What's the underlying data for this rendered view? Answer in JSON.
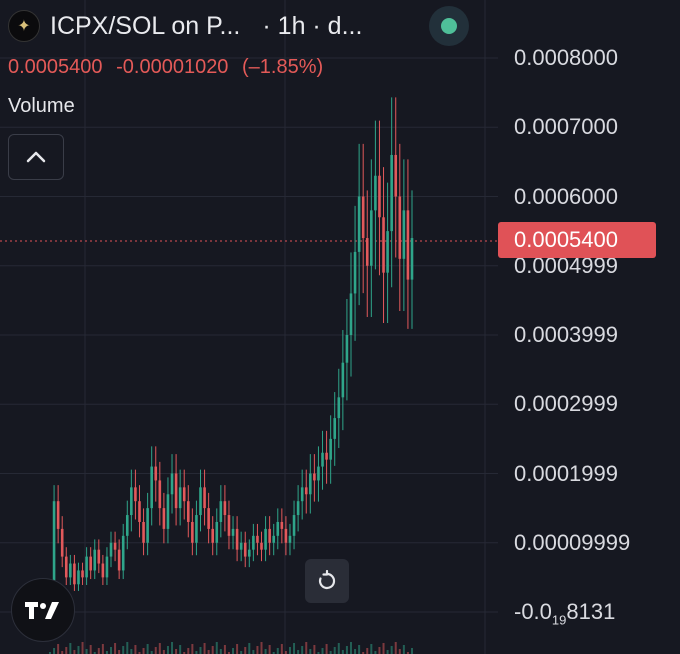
{
  "header": {
    "title": "ICPX/SOL on P...",
    "interval": "· 1h · d..."
  },
  "quote": {
    "last": "0.0005400",
    "change": "-0.00001020",
    "change_pct": "(–1.85%)"
  },
  "volume_label": "Volume",
  "price_axis": {
    "labels": [
      {
        "text": "0.0008000",
        "value": 0.0008
      },
      {
        "text": "0.0007000",
        "value": 0.0007
      },
      {
        "text": "0.0006000",
        "value": 0.0006
      },
      {
        "text": "0.0004999",
        "value": 0.0005
      },
      {
        "text": "0.0003999",
        "value": 0.0004
      },
      {
        "text": "0.0002999",
        "value": 0.0003
      },
      {
        "text": "0.0001999",
        "value": 0.0002
      },
      {
        "text": "0.00009999",
        "value": 0.0001
      },
      {
        "text": "-0.0",
        "sub": "19",
        "tail": "8131",
        "value": 0.0
      }
    ],
    "current_price_tag": "0.0005400",
    "current_price": 0.00054
  },
  "colors": {
    "up": "#2fa58a",
    "down": "#e2595b",
    "background": "#161821",
    "status_indicator": "#4fbf99"
  },
  "icons": {
    "pair_logo": "pair-token-icon",
    "collapse": "chevron-up-icon",
    "reset": "rotate-reset-icon",
    "brand": "tradingview-logo"
  },
  "chart_data": {
    "type": "candlestick",
    "ylim": [
      0.0,
      0.0008
    ],
    "grid": true,
    "current_price": 0.00054,
    "x": [
      "t01",
      "t02",
      "t03",
      "t04",
      "t05",
      "t06",
      "t07",
      "t08",
      "t09",
      "t10",
      "t11",
      "t12",
      "t13",
      "t14",
      "t15",
      "t16",
      "t17",
      "t18",
      "t19",
      "t20",
      "t21",
      "t22",
      "t23",
      "t24",
      "t25",
      "t26",
      "t27",
      "t28",
      "t29",
      "t30",
      "t31",
      "t32",
      "t33",
      "t34",
      "t35",
      "t36",
      "t37",
      "t38",
      "t39",
      "t40",
      "t41",
      "t42",
      "t43",
      "t44",
      "t45",
      "t46",
      "t47",
      "t48",
      "t49",
      "t50",
      "t51",
      "t52",
      "t53",
      "t54",
      "t55",
      "t56",
      "t57",
      "t58",
      "t59",
      "t60",
      "t61",
      "t62",
      "t63",
      "t64",
      "t65",
      "t66",
      "t67",
      "t68",
      "t69",
      "t70",
      "t71",
      "t72",
      "t73",
      "t74",
      "t75",
      "t76",
      "t77",
      "t78",
      "t79",
      "t80",
      "t81",
      "t82",
      "t83",
      "t84",
      "t85",
      "t86",
      "t87",
      "t88",
      "t89",
      "t90"
    ],
    "close": [
      2e-05,
      0.00016,
      0.00012,
      8e-05,
      5e-05,
      7e-05,
      4e-05,
      6e-05,
      5e-05,
      8e-05,
      6e-05,
      9e-05,
      7e-05,
      5e-05,
      8e-05,
      0.0001,
      9e-05,
      6e-05,
      0.00011,
      0.00014,
      0.00018,
      0.00016,
      0.00013,
      0.0001,
      0.00015,
      0.00021,
      0.00019,
      0.00015,
      0.00012,
      0.00017,
      0.0002,
      0.00015,
      0.00018,
      0.00016,
      0.00013,
      0.0001,
      0.00014,
      0.00018,
      0.00015,
      0.00012,
      0.0001,
      0.00013,
      0.00016,
      0.00014,
      0.00011,
      0.00012,
      9e-05,
      0.0001,
      8e-05,
      9e-05,
      0.00011,
      0.0001,
      9e-05,
      0.00012,
      0.0001,
      0.00011,
      0.00013,
      0.00012,
      0.0001,
      0.00011,
      0.00014,
      0.00016,
      0.00018,
      0.00017,
      0.0002,
      0.00019,
      0.00021,
      0.00023,
      0.00022,
      0.00025,
      0.00028,
      0.00031,
      0.00036,
      0.0004,
      0.00046,
      0.00052,
      0.0006,
      0.00054,
      0.0005,
      0.00058,
      0.00063,
      0.00057,
      0.00049,
      0.00055,
      0.00066,
      0.0006,
      0.00051,
      0.00058,
      0.00048,
      0.00054
    ]
  }
}
